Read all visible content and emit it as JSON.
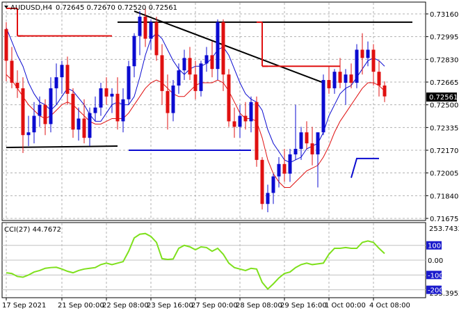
{
  "header": {
    "symbol": "AUDUSD,H4",
    "quote": "0.72645 0.72670 0.72520 0.72561"
  },
  "current_price_tag": "0.72561",
  "indicator": {
    "name": "CCI(27) 44.7672",
    "scale_top": "253.7433",
    "scale_bottom": "-253.3952",
    "levels": [
      "100",
      "0.00",
      "-100",
      "-200"
    ],
    "level_values": [
      100,
      0,
      -100,
      -200
    ],
    "range": [
      -253.3952,
      253.7433
    ]
  },
  "chart_data": [
    {
      "type": "candlestick",
      "title": "AUDUSD,H4",
      "ylim": [
        0.71675,
        0.7316
      ],
      "y_tick_labels": [
        "0.73160",
        "0.72995",
        "0.72830",
        "0.72665",
        "0.72500",
        "0.72335",
        "0.72170",
        "0.72005",
        "0.71840",
        "0.71675"
      ],
      "y_ticks": [
        0.7316,
        0.72995,
        0.7283,
        0.72665,
        0.725,
        0.72335,
        0.7217,
        0.72005,
        0.7184,
        0.71675
      ],
      "x_tick_labels": [
        "17 Sep 2021",
        "21 Sep 00:00",
        "22 Sep 08:00",
        "23 Sep 16:00",
        "27 Sep 00:00",
        "28 Sep 08:00",
        "29 Sep 16:00",
        "1 Oct 00:00",
        "4 Oct 08:00"
      ],
      "x_tick_bars": [
        0,
        10,
        18,
        26,
        34,
        42,
        50,
        58,
        66
      ],
      "candles": [
        [
          0.7305,
          0.731,
          0.7267,
          0.7282
        ],
        [
          0.7282,
          0.7292,
          0.7262,
          0.7266
        ],
        [
          0.7266,
          0.7275,
          0.7255,
          0.7262
        ],
        [
          0.7262,
          0.727,
          0.7215,
          0.7228
        ],
        [
          0.7228,
          0.7242,
          0.722,
          0.723
        ],
        [
          0.723,
          0.7252,
          0.7222,
          0.7242
        ],
        [
          0.7242,
          0.7256,
          0.7234,
          0.725
        ],
        [
          0.725,
          0.7254,
          0.7228,
          0.7236
        ],
        [
          0.7236,
          0.727,
          0.723,
          0.7262
        ],
        [
          0.7262,
          0.728,
          0.725,
          0.727
        ],
        [
          0.727,
          0.7282,
          0.7258,
          0.7279
        ],
        [
          0.7279,
          0.7285,
          0.725,
          0.7258
        ],
        [
          0.7258,
          0.7262,
          0.7226,
          0.7232
        ],
        [
          0.7232,
          0.7248,
          0.7224,
          0.724
        ],
        [
          0.724,
          0.7254,
          0.7222,
          0.7226
        ],
        [
          0.7226,
          0.7248,
          0.722,
          0.7244
        ],
        [
          0.7244,
          0.7256,
          0.7238,
          0.7248
        ],
        [
          0.7248,
          0.7266,
          0.7242,
          0.7262
        ],
        [
          0.7262,
          0.727,
          0.725,
          0.7256
        ],
        [
          0.7256,
          0.7262,
          0.7244,
          0.7258
        ],
        [
          0.7258,
          0.727,
          0.7232,
          0.7238
        ],
        [
          0.7238,
          0.7262,
          0.723,
          0.7254
        ],
        [
          0.7254,
          0.7282,
          0.725,
          0.7278
        ],
        [
          0.7278,
          0.7302,
          0.727,
          0.73
        ],
        [
          0.73,
          0.7318,
          0.7286,
          0.7314
        ],
        [
          0.7314,
          0.732,
          0.7292,
          0.7298
        ],
        [
          0.7298,
          0.7312,
          0.729,
          0.731
        ],
        [
          0.731,
          0.7314,
          0.7282,
          0.7286
        ],
        [
          0.7286,
          0.7294,
          0.725,
          0.726
        ],
        [
          0.726,
          0.7272,
          0.7232,
          0.7244
        ],
        [
          0.7244,
          0.7268,
          0.7238,
          0.7264
        ],
        [
          0.7264,
          0.728,
          0.7258,
          0.7275
        ],
        [
          0.7275,
          0.729,
          0.7268,
          0.7284
        ],
        [
          0.7284,
          0.7292,
          0.7268,
          0.7272
        ],
        [
          0.7272,
          0.7282,
          0.7254,
          0.726
        ],
        [
          0.726,
          0.7282,
          0.7256,
          0.728
        ],
        [
          0.728,
          0.7292,
          0.7274,
          0.7286
        ],
        [
          0.7286,
          0.7296,
          0.727,
          0.7276
        ],
        [
          0.7276,
          0.7312,
          0.7268,
          0.731
        ],
        [
          0.731,
          0.7312,
          0.726,
          0.7272
        ],
        [
          0.7272,
          0.7276,
          0.7234,
          0.7238
        ],
        [
          0.7238,
          0.7248,
          0.7226,
          0.7234
        ],
        [
          0.7234,
          0.725,
          0.7226,
          0.7242
        ],
        [
          0.7242,
          0.7252,
          0.7232,
          0.7238
        ],
        [
          0.7238,
          0.7256,
          0.723,
          0.7252
        ],
        [
          0.7252,
          0.7256,
          0.7205,
          0.721
        ],
        [
          0.721,
          0.7212,
          0.7174,
          0.7178
        ],
        [
          0.7178,
          0.7192,
          0.7172,
          0.7186
        ],
        [
          0.7186,
          0.72,
          0.7178,
          0.7198
        ],
        [
          0.7198,
          0.7212,
          0.719,
          0.7207
        ],
        [
          0.7207,
          0.7218,
          0.7194,
          0.72
        ],
        [
          0.72,
          0.7218,
          0.7194,
          0.7214
        ],
        [
          0.7214,
          0.725,
          0.721,
          0.7218
        ],
        [
          0.7218,
          0.7234,
          0.721,
          0.723
        ],
        [
          0.723,
          0.7238,
          0.7218,
          0.7222
        ],
        [
          0.7222,
          0.7234,
          0.7206,
          0.7214
        ],
        [
          0.7214,
          0.723,
          0.719,
          0.723
        ],
        [
          0.723,
          0.7272,
          0.7228,
          0.7268
        ],
        [
          0.7268,
          0.7278,
          0.7258,
          0.7262
        ],
        [
          0.7262,
          0.7276,
          0.7258,
          0.7274
        ],
        [
          0.7274,
          0.7284,
          0.7262,
          0.7266
        ],
        [
          0.7266,
          0.7276,
          0.725,
          0.7272
        ],
        [
          0.7272,
          0.728,
          0.7262,
          0.7266
        ],
        [
          0.7266,
          0.7294,
          0.7262,
          0.729
        ],
        [
          0.729,
          0.7302,
          0.7272,
          0.7284
        ],
        [
          0.7284,
          0.7296,
          0.7278,
          0.729
        ],
        [
          0.729,
          0.7294,
          0.7264,
          0.7274
        ],
        [
          0.7274,
          0.7282,
          0.7256,
          0.7264
        ],
        [
          0.7264,
          0.7267,
          0.7252,
          0.72561
        ]
      ],
      "moving_averages": [
        {
          "color": "#0b0bd0",
          "values": [
            0.7306,
            0.7296,
            0.7286,
            0.7278,
            0.7266,
            0.7258,
            0.7252,
            0.725,
            0.7246,
            0.725,
            0.7256,
            0.7262,
            0.726,
            0.7255,
            0.725,
            0.7243,
            0.7238,
            0.7238,
            0.7244,
            0.725,
            0.7252,
            0.725,
            0.725,
            0.7256,
            0.727,
            0.7286,
            0.7298,
            0.7302,
            0.7298,
            0.729,
            0.7282,
            0.7276,
            0.7272,
            0.7276,
            0.7278,
            0.7278,
            0.728,
            0.7284,
            0.729,
            0.7292,
            0.7286,
            0.7276,
            0.7266,
            0.7258,
            0.7254,
            0.7252,
            0.7246,
            0.7232,
            0.7222,
            0.7216,
            0.721,
            0.7208,
            0.721,
            0.7212,
            0.7218,
            0.722,
            0.7222,
            0.723,
            0.7242,
            0.725,
            0.7258,
            0.7262,
            0.7264,
            0.727,
            0.7276,
            0.7282,
            0.7284,
            0.7282,
            0.7278
          ]
        },
        {
          "color": "#e01010",
          "values": [
            0.7272,
            0.7268,
            0.7262,
            0.7256,
            0.725,
            0.7246,
            0.7242,
            0.724,
            0.7242,
            0.7246,
            0.725,
            0.7252,
            0.725,
            0.7246,
            0.7242,
            0.7238,
            0.7236,
            0.7236,
            0.7238,
            0.724,
            0.724,
            0.724,
            0.7244,
            0.725,
            0.7256,
            0.7262,
            0.7266,
            0.7268,
            0.7266,
            0.7262,
            0.7258,
            0.7256,
            0.7256,
            0.726,
            0.7264,
            0.7266,
            0.7266,
            0.7266,
            0.7268,
            0.7266,
            0.726,
            0.7252,
            0.7244,
            0.724,
            0.724,
            0.7238,
            0.7226,
            0.721,
            0.72,
            0.7194,
            0.719,
            0.719,
            0.7194,
            0.7198,
            0.7202,
            0.7204,
            0.7206,
            0.7212,
            0.722,
            0.723,
            0.7238,
            0.7244,
            0.725,
            0.7256,
            0.7262,
            0.7266,
            0.7266,
            0.7264,
            0.726
          ]
        }
      ],
      "trendlines": [
        {
          "color": "#000000",
          "bar1": 23,
          "price1": 0.7318,
          "bar2": 57,
          "price2": 0.7266
        },
        {
          "color": "#000000",
          "bar1": 0,
          "price1": 0.7219,
          "bar2": 20,
          "price2": 0.722
        },
        {
          "color": "#000000",
          "bar1": 20,
          "price1": 0.731,
          "bar2": 73,
          "price2": 0.731
        },
        {
          "color": "#e01010",
          "bar1": 2,
          "price1": 0.73,
          "bar2": 19,
          "price2": 0.73
        },
        {
          "color": "#e01010",
          "bar1": 46,
          "price1": 0.7278,
          "bar2": 60,
          "price2": 0.7278
        },
        {
          "color": "#0b0bd0",
          "bar1": 22,
          "price1": 0.7217,
          "bar2": 44,
          "price2": 0.7217
        }
      ],
      "red_steps": [
        {
          "start": 0,
          "end": 2,
          "price": 0.732
        },
        {
          "start": 2,
          "end": 3,
          "price": 0.73
        },
        {
          "start": 45,
          "end": 46,
          "price": 0.731
        },
        {
          "start": 46,
          "end": 47,
          "price": 0.7278
        }
      ],
      "blue_step": {
        "bar_start": 62,
        "bar_turn": 63,
        "bar_end": 67,
        "price_low": 0.7197,
        "price_high": 0.7211
      }
    },
    {
      "type": "line",
      "title": "CCI(27) 44.7672",
      "ylim": [
        -253.3952,
        253.7433
      ],
      "y_tick_labels": [
        "253.7433",
        "100",
        "0.00",
        "-100",
        "-200",
        "-253.3952"
      ],
      "series": [
        {
          "color": "#7ee01c",
          "values": [
            -85,
            -90,
            -110,
            -115,
            -100,
            -80,
            -70,
            -55,
            -50,
            -48,
            -60,
            -75,
            -85,
            -70,
            -60,
            -55,
            -50,
            -30,
            -20,
            -30,
            -20,
            -10,
            60,
            150,
            175,
            180,
            160,
            120,
            10,
            5,
            8,
            80,
            100,
            90,
            70,
            90,
            85,
            60,
            80,
            40,
            -20,
            -50,
            -60,
            -70,
            -55,
            -60,
            -150,
            -195,
            -160,
            -120,
            -90,
            -80,
            -50,
            -30,
            -20,
            -30,
            -25,
            -20,
            40,
            80,
            80,
            85,
            80,
            80,
            120,
            130,
            120,
            80,
            44.7672
          ]
        }
      ]
    }
  ]
}
